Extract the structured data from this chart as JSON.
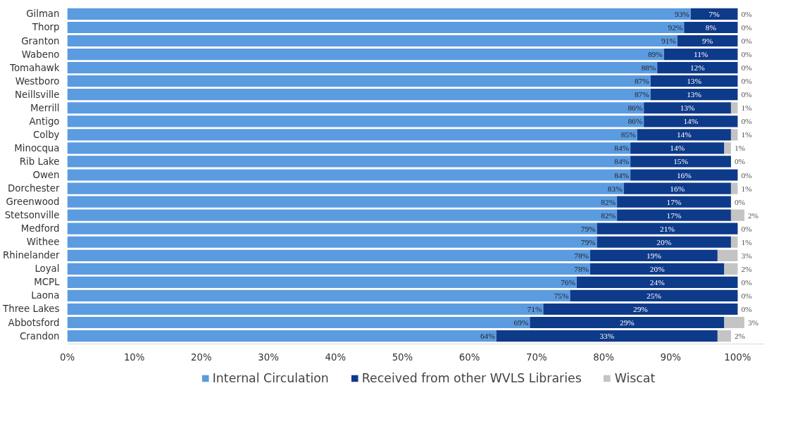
{
  "chart_data": {
    "type": "bar",
    "orientation": "horizontal",
    "stacked": true,
    "legend": "bottom",
    "grid": false,
    "data_labels": true,
    "categories": [
      "Gilman",
      "Thorp",
      "Granton",
      "Wabeno",
      "Tomahawk",
      "Westboro",
      "Neillsville",
      "Merrill",
      "Antigo",
      "Colby",
      "Minocqua",
      "Rib Lake",
      "Owen",
      "Dorchester",
      "Greenwood",
      "Stetsonville",
      "Medford",
      "Withee",
      "Rhinelander",
      "Loyal",
      "MCPL",
      "Laona",
      "Three Lakes",
      "Abbotsford",
      "Crandon"
    ],
    "series": [
      {
        "name": "Internal Circulation",
        "color": "#5b9be0",
        "values": [
          93,
          92,
          91,
          89,
          88,
          87,
          87,
          86,
          86,
          85,
          84,
          84,
          84,
          83,
          82,
          82,
          79,
          79,
          78,
          78,
          76,
          75,
          71,
          69,
          64
        ],
        "value_labels": [
          "93%",
          "92%",
          "91%",
          "89%",
          "88%",
          "87%",
          "87%",
          "86%",
          "86%",
          "85%",
          "84%",
          "84%",
          "84%",
          "83%",
          "82%",
          "82%",
          "79%",
          "79%",
          "78%",
          "78%",
          "76%",
          "75%",
          "71%",
          "69%",
          "64%"
        ]
      },
      {
        "name": "Received from other WVLS Libraries",
        "color": "#0e3a8a",
        "values": [
          7,
          8,
          9,
          11,
          12,
          13,
          13,
          13,
          14,
          14,
          14,
          15,
          16,
          16,
          17,
          17,
          21,
          20,
          19,
          20,
          24,
          25,
          29,
          29,
          33
        ],
        "value_labels": [
          "7%",
          "8%",
          "9%",
          "11%",
          "12%",
          "13%",
          "13%",
          "13%",
          "14%",
          "14%",
          "14%",
          "15%",
          "16%",
          "16%",
          "17%",
          "17%",
          "21%",
          "20%",
          "19%",
          "20%",
          "24%",
          "25%",
          "29%",
          "29%",
          "33%"
        ]
      },
      {
        "name": "Wiscat",
        "color": "#c4c4c4",
        "values": [
          0,
          0,
          0,
          0,
          0,
          0,
          0,
          1,
          0,
          1,
          1,
          0,
          0,
          1,
          0,
          2,
          0,
          1,
          3,
          2,
          0,
          0,
          0,
          3,
          2
        ],
        "value_labels": [
          "0%",
          "0%",
          "0%",
          "0%",
          "0%",
          "0%",
          "0%",
          "1%",
          "0%",
          "1%",
          "1%",
          "0%",
          "0%",
          "1%",
          "0%",
          "2%",
          "0%",
          "1%",
          "3%",
          "2%",
          "0%",
          "0%",
          "0%",
          "3%",
          "2%"
        ]
      }
    ],
    "xlim": [
      0,
      104
    ],
    "xticks": [
      {
        "value": 0,
        "label": "0%"
      },
      {
        "value": 10,
        "label": "10%"
      },
      {
        "value": 20,
        "label": "20%"
      },
      {
        "value": 30,
        "label": "30%"
      },
      {
        "value": 40,
        "label": "40%"
      },
      {
        "value": 50,
        "label": "50%"
      },
      {
        "value": 60,
        "label": "60%"
      },
      {
        "value": 70,
        "label": "70%"
      },
      {
        "value": 80,
        "label": "80%"
      },
      {
        "value": 90,
        "label": "90%"
      },
      {
        "value": 100,
        "label": "100%"
      }
    ]
  }
}
